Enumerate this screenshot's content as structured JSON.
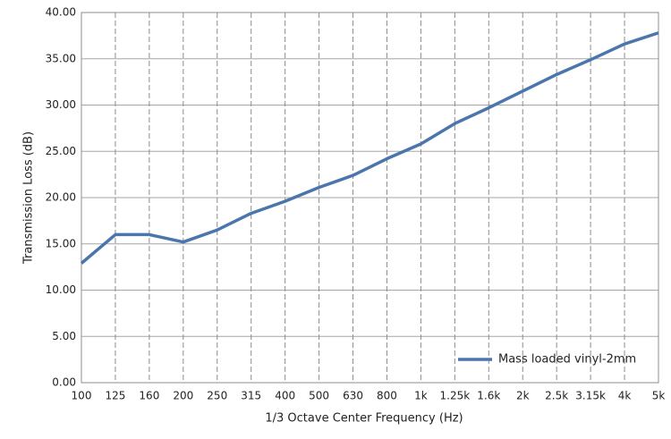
{
  "chart_data": {
    "type": "line",
    "x_label": "1/3 Octave Center Frequency (Hz)",
    "y_label": "Transmission Loss (dB)",
    "categories": [
      "100",
      "125",
      "160",
      "200",
      "250",
      "315",
      "400",
      "500",
      "630",
      "800",
      "1k",
      "1.25k",
      "1.6k",
      "2k",
      "2.5k",
      "3.15k",
      "4k",
      "5k"
    ],
    "series": [
      {
        "name": "Mass loaded vinyl-2mm",
        "color": "#4a76ad",
        "values": [
          12.9,
          16.0,
          16.0,
          15.2,
          16.5,
          18.3,
          19.6,
          21.1,
          22.4,
          24.2,
          25.8,
          28.0,
          29.7,
          31.5,
          33.3,
          34.9,
          36.6,
          37.8
        ]
      }
    ],
    "ylim": [
      0,
      40
    ],
    "yticks": [
      {
        "value": 0,
        "label": "0.00"
      },
      {
        "value": 5,
        "label": "5.00"
      },
      {
        "value": 10,
        "label": "10.00"
      },
      {
        "value": 15,
        "label": "15.00"
      },
      {
        "value": 20,
        "label": "20.00"
      },
      {
        "value": 25,
        "label": "25.00"
      },
      {
        "value": 30,
        "label": "30.00"
      },
      {
        "value": 35,
        "label": "35.00"
      },
      {
        "value": 40,
        "label": "40.00"
      }
    ],
    "grid": true,
    "legend_position": "lower right"
  }
}
